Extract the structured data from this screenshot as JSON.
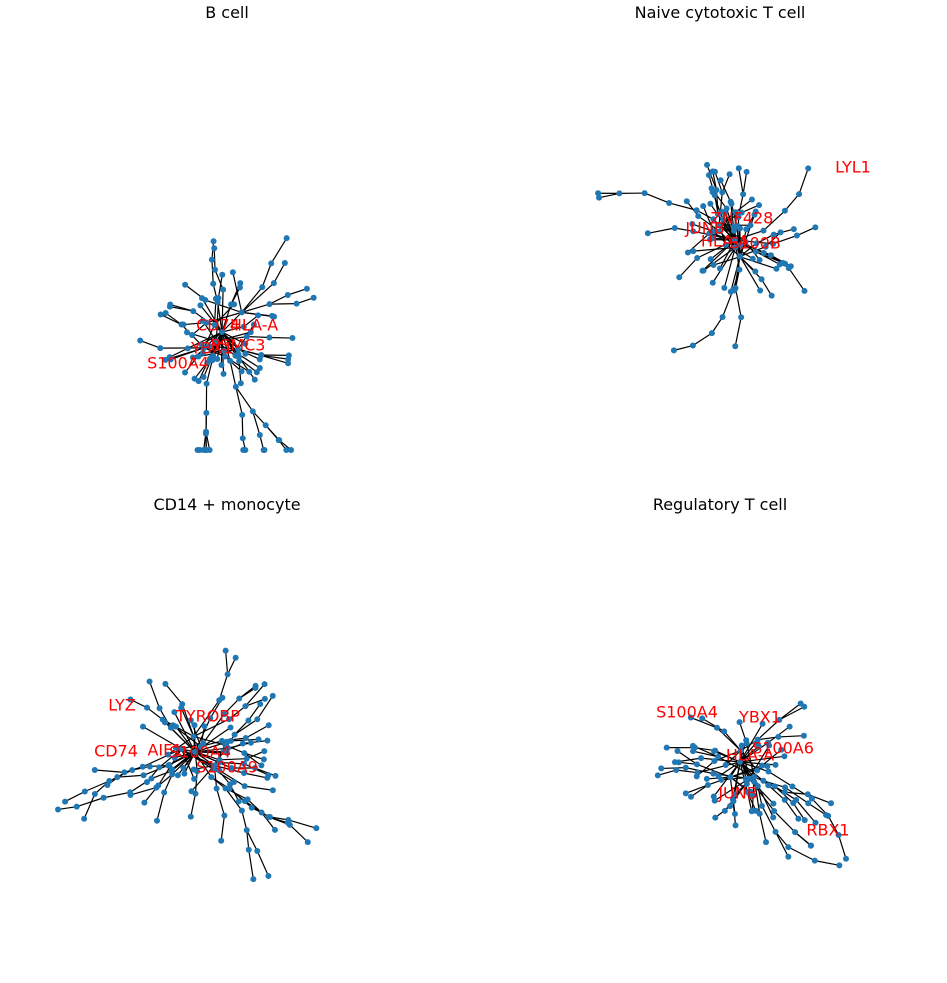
{
  "panels": [
    {
      "title": "B cell",
      "labels": [
        "CD74",
        "HLA-A",
        "PSMC3",
        "YBX1",
        "S100A4"
      ]
    },
    {
      "title": "Naive cytotoxic T cell",
      "labels": [
        "LYL1",
        "ZNF428",
        "JUNB",
        "HLA-A",
        "S100B"
      ]
    },
    {
      "title": "CD14 + monocyte",
      "labels": [
        "LYZ",
        "TYROBP",
        "CD74",
        "AIF1",
        "S100A4",
        "S100A9"
      ]
    },
    {
      "title": "Regulatory T cell",
      "labels": [
        "S100A4",
        "YBX1",
        "S100A6",
        "HLA-A",
        "JUNB",
        "RBX1"
      ]
    }
  ]
}
